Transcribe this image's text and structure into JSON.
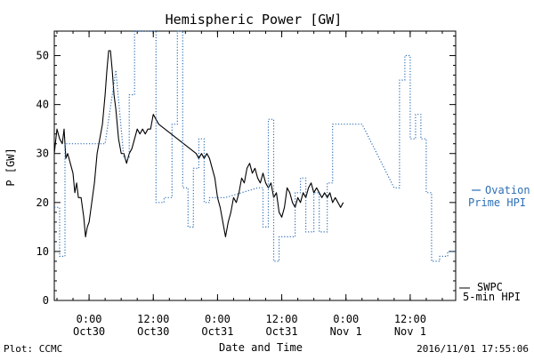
{
  "chart_data": {
    "type": "line",
    "title": "Hemispheric Power [GW]",
    "xlabel": "Date and Time",
    "ylabel": "P [GW]",
    "xlim": [
      "2016-10-29T17:30",
      "2016-11-01T20:30"
    ],
    "ylim": [
      0,
      55
    ],
    "y_ticks": [
      0,
      10,
      20,
      30,
      40,
      50
    ],
    "x_ticks": [
      {
        "t": "2016-10-30T00:00",
        "line1": "0:00",
        "line2": "Oct30"
      },
      {
        "t": "2016-10-30T12:00",
        "line1": "12:00",
        "line2": "Oct30"
      },
      {
        "t": "2016-10-31T00:00",
        "line1": "0:00",
        "line2": "Oct31"
      },
      {
        "t": "2016-10-31T12:00",
        "line1": "12:00",
        "line2": "Oct31"
      },
      {
        "t": "2016-11-01T00:00",
        "line1": "0:00",
        "line2": "Nov 1"
      },
      {
        "t": "2016-11-01T12:00",
        "line1": "12:00",
        "line2": "Nov 1"
      }
    ],
    "grid": false,
    "legend": [
      {
        "label_line1": "Ovation",
        "label_line2": "Prime HPI",
        "color": "#2e6fb5",
        "style": "dotted"
      },
      {
        "label_line1": "SWPC",
        "label_line2": "5-min HPI",
        "color": "#000000",
        "style": "solid"
      }
    ],
    "series": [
      {
        "color": "#000000",
        "style": "solid",
        "points": [
          [
            "2016-10-29T17:30",
            30
          ],
          [
            "2016-10-29T18:00",
            35
          ],
          [
            "2016-10-29T18:30",
            33
          ],
          [
            "2016-10-29T19:00",
            32
          ],
          [
            "2016-10-29T19:20",
            35
          ],
          [
            "2016-10-29T19:40",
            29
          ],
          [
            "2016-10-29T20:00",
            30
          ],
          [
            "2016-10-29T20:30",
            28
          ],
          [
            "2016-10-29T21:00",
            26
          ],
          [
            "2016-10-29T21:20",
            22
          ],
          [
            "2016-10-29T21:40",
            24
          ],
          [
            "2016-10-29T22:00",
            21
          ],
          [
            "2016-10-29T22:30",
            21
          ],
          [
            "2016-10-29T23:00",
            17
          ],
          [
            "2016-10-29T23:20",
            13
          ],
          [
            "2016-10-29T23:40",
            15
          ],
          [
            "2016-10-30T00:00",
            16
          ],
          [
            "2016-10-30T00:30",
            20
          ],
          [
            "2016-10-30T01:00",
            24
          ],
          [
            "2016-10-30T01:30",
            30
          ],
          [
            "2016-10-30T02:00",
            33
          ],
          [
            "2016-10-30T02:30",
            36
          ],
          [
            "2016-10-30T03:00",
            42
          ],
          [
            "2016-10-30T03:20",
            47
          ],
          [
            "2016-10-30T03:40",
            51
          ],
          [
            "2016-10-30T04:00",
            51
          ],
          [
            "2016-10-30T04:20",
            47
          ],
          [
            "2016-10-30T04:40",
            42
          ],
          [
            "2016-10-30T05:00",
            39
          ],
          [
            "2016-10-30T05:30",
            33
          ],
          [
            "2016-10-30T06:00",
            30
          ],
          [
            "2016-10-30T06:30",
            30
          ],
          [
            "2016-10-30T07:00",
            28
          ],
          [
            "2016-10-30T07:30",
            30
          ],
          [
            "2016-10-30T08:00",
            31
          ],
          [
            "2016-10-30T08:30",
            33
          ],
          [
            "2016-10-30T09:00",
            35
          ],
          [
            "2016-10-30T09:30",
            34
          ],
          [
            "2016-10-30T10:00",
            35
          ],
          [
            "2016-10-30T10:30",
            34
          ],
          [
            "2016-10-30T11:00",
            35
          ],
          [
            "2016-10-30T11:30",
            35
          ],
          [
            "2016-10-30T12:00",
            38
          ],
          [
            "2016-10-30T12:30",
            37
          ],
          [
            "2016-10-30T13:00",
            36
          ],
          [
            "2016-10-30T20:00",
            30
          ],
          [
            "2016-10-30T20:30",
            29
          ],
          [
            "2016-10-30T21:00",
            30
          ],
          [
            "2016-10-30T21:30",
            29
          ],
          [
            "2016-10-30T22:00",
            30
          ],
          [
            "2016-10-30T22:30",
            29
          ],
          [
            "2016-10-30T23:00",
            27
          ],
          [
            "2016-10-30T23:30",
            25
          ],
          [
            "2016-10-31T00:00",
            21
          ],
          [
            "2016-10-31T00:30",
            19
          ],
          [
            "2016-10-31T01:00",
            16
          ],
          [
            "2016-10-31T01:30",
            13
          ],
          [
            "2016-10-31T02:00",
            16
          ],
          [
            "2016-10-31T02:30",
            18
          ],
          [
            "2016-10-31T03:00",
            21
          ],
          [
            "2016-10-31T03:30",
            20
          ],
          [
            "2016-10-31T04:00",
            22
          ],
          [
            "2016-10-31T04:30",
            25
          ],
          [
            "2016-10-31T05:00",
            24
          ],
          [
            "2016-10-31T05:30",
            27
          ],
          [
            "2016-10-31T06:00",
            28
          ],
          [
            "2016-10-31T06:30",
            26
          ],
          [
            "2016-10-31T07:00",
            27
          ],
          [
            "2016-10-31T07:30",
            25
          ],
          [
            "2016-10-31T08:00",
            24
          ],
          [
            "2016-10-31T08:30",
            26
          ],
          [
            "2016-10-31T09:00",
            24
          ],
          [
            "2016-10-31T09:30",
            23
          ],
          [
            "2016-10-31T10:00",
            24
          ],
          [
            "2016-10-31T10:30",
            21
          ],
          [
            "2016-10-31T11:00",
            22
          ],
          [
            "2016-10-31T11:30",
            18
          ],
          [
            "2016-10-31T12:00",
            17
          ],
          [
            "2016-10-31T12:30",
            19
          ],
          [
            "2016-10-31T13:00",
            23
          ],
          [
            "2016-10-31T13:30",
            22
          ],
          [
            "2016-10-31T14:00",
            20
          ],
          [
            "2016-10-31T14:30",
            19
          ],
          [
            "2016-10-31T15:00",
            21
          ],
          [
            "2016-10-31T15:30",
            20
          ],
          [
            "2016-10-31T16:00",
            22
          ],
          [
            "2016-10-31T16:30",
            21
          ],
          [
            "2016-10-31T17:00",
            23
          ],
          [
            "2016-10-31T17:30",
            24
          ],
          [
            "2016-10-31T18:00",
            22
          ],
          [
            "2016-10-31T18:30",
            23
          ],
          [
            "2016-10-31T19:00",
            22
          ],
          [
            "2016-10-31T19:30",
            21
          ],
          [
            "2016-10-31T20:00",
            22
          ],
          [
            "2016-10-31T20:30",
            21
          ],
          [
            "2016-10-31T21:00",
            22
          ],
          [
            "2016-10-31T21:30",
            20
          ],
          [
            "2016-10-31T22:00",
            21
          ],
          [
            "2016-10-31T22:30",
            20
          ],
          [
            "2016-10-31T23:00",
            19
          ],
          [
            "2016-10-31T23:30",
            20
          ]
        ]
      },
      {
        "color": "#2e6fb5",
        "style": "dotted",
        "points": [
          [
            "2016-10-29T17:30",
            19
          ],
          [
            "2016-10-29T18:30",
            19
          ],
          [
            "2016-10-29T18:30",
            9
          ],
          [
            "2016-10-29T19:30",
            9
          ],
          [
            "2016-10-29T19:30",
            32
          ],
          [
            "2016-10-30T03:00",
            32
          ],
          [
            "2016-10-30T05:00",
            47
          ],
          [
            "2016-10-30T06:30",
            29
          ],
          [
            "2016-10-30T07:30",
            29
          ],
          [
            "2016-10-30T07:30",
            42
          ],
          [
            "2016-10-30T08:30",
            42
          ],
          [
            "2016-10-30T08:30",
            56
          ],
          [
            "2016-10-30T10:30",
            56
          ],
          [
            "2016-10-30T11:30",
            56
          ],
          [
            "2016-10-30T12:30",
            56
          ],
          [
            "2016-10-30T12:30",
            20
          ],
          [
            "2016-10-30T14:00",
            20
          ],
          [
            "2016-10-30T14:00",
            21
          ],
          [
            "2016-10-30T15:30",
            21
          ],
          [
            "2016-10-30T15:30",
            36
          ],
          [
            "2016-10-30T16:30",
            36
          ],
          [
            "2016-10-30T16:30",
            55
          ],
          [
            "2016-10-30T17:30",
            55
          ],
          [
            "2016-10-30T17:30",
            23
          ],
          [
            "2016-10-30T18:30",
            23
          ],
          [
            "2016-10-30T18:30",
            15
          ],
          [
            "2016-10-30T19:30",
            15
          ],
          [
            "2016-10-30T19:30",
            27
          ],
          [
            "2016-10-30T20:30",
            27
          ],
          [
            "2016-10-30T20:30",
            33
          ],
          [
            "2016-10-30T21:30",
            33
          ],
          [
            "2016-10-30T21:30",
            20
          ],
          [
            "2016-10-30T22:30",
            20
          ],
          [
            "2016-10-30T22:30",
            21
          ],
          [
            "2016-10-31T00:30",
            21
          ],
          [
            "2016-10-31T01:30",
            21
          ],
          [
            "2016-10-31T07:30",
            23
          ],
          [
            "2016-10-31T08:30",
            23
          ],
          [
            "2016-10-31T08:30",
            15
          ],
          [
            "2016-10-31T09:30",
            15
          ],
          [
            "2016-10-31T09:30",
            37
          ],
          [
            "2016-10-31T10:30",
            37
          ],
          [
            "2016-10-31T10:30",
            8
          ],
          [
            "2016-10-31T11:30",
            8
          ],
          [
            "2016-10-31T11:30",
            13
          ],
          [
            "2016-10-31T14:30",
            13
          ],
          [
            "2016-10-31T14:30",
            22
          ],
          [
            "2016-10-31T15:30",
            22
          ],
          [
            "2016-10-31T15:30",
            25
          ],
          [
            "2016-10-31T16:30",
            25
          ],
          [
            "2016-10-31T16:30",
            14
          ],
          [
            "2016-10-31T18:00",
            14
          ],
          [
            "2016-10-31T18:00",
            22
          ],
          [
            "2016-10-31T19:00",
            22
          ],
          [
            "2016-10-31T19:00",
            14
          ],
          [
            "2016-10-31T20:30",
            14
          ],
          [
            "2016-10-31T20:30",
            24
          ],
          [
            "2016-10-31T21:30",
            24
          ],
          [
            "2016-10-31T21:30",
            36
          ],
          [
            "2016-11-01T03:00",
            36
          ],
          [
            "2016-11-01T09:00",
            23
          ],
          [
            "2016-11-01T10:00",
            23
          ],
          [
            "2016-11-01T10:00",
            45
          ],
          [
            "2016-11-01T11:00",
            45
          ],
          [
            "2016-11-01T11:00",
            50
          ],
          [
            "2016-11-01T12:00",
            50
          ],
          [
            "2016-11-01T12:00",
            33
          ],
          [
            "2016-11-01T13:00",
            33
          ],
          [
            "2016-11-01T13:00",
            38
          ],
          [
            "2016-11-01T14:00",
            38
          ],
          [
            "2016-11-01T14:00",
            33
          ],
          [
            "2016-11-01T15:00",
            33
          ],
          [
            "2016-11-01T15:00",
            22
          ],
          [
            "2016-11-01T16:00",
            22
          ],
          [
            "2016-11-01T16:00",
            8
          ],
          [
            "2016-11-01T17:30",
            8
          ],
          [
            "2016-11-01T17:30",
            9
          ],
          [
            "2016-11-01T19:00",
            9
          ],
          [
            "2016-11-01T19:00",
            10
          ],
          [
            "2016-11-01T20:30",
            10
          ]
        ]
      }
    ]
  },
  "footer": {
    "left": "Plot: CCMC",
    "right": "2016/11/01 17:55:06"
  }
}
